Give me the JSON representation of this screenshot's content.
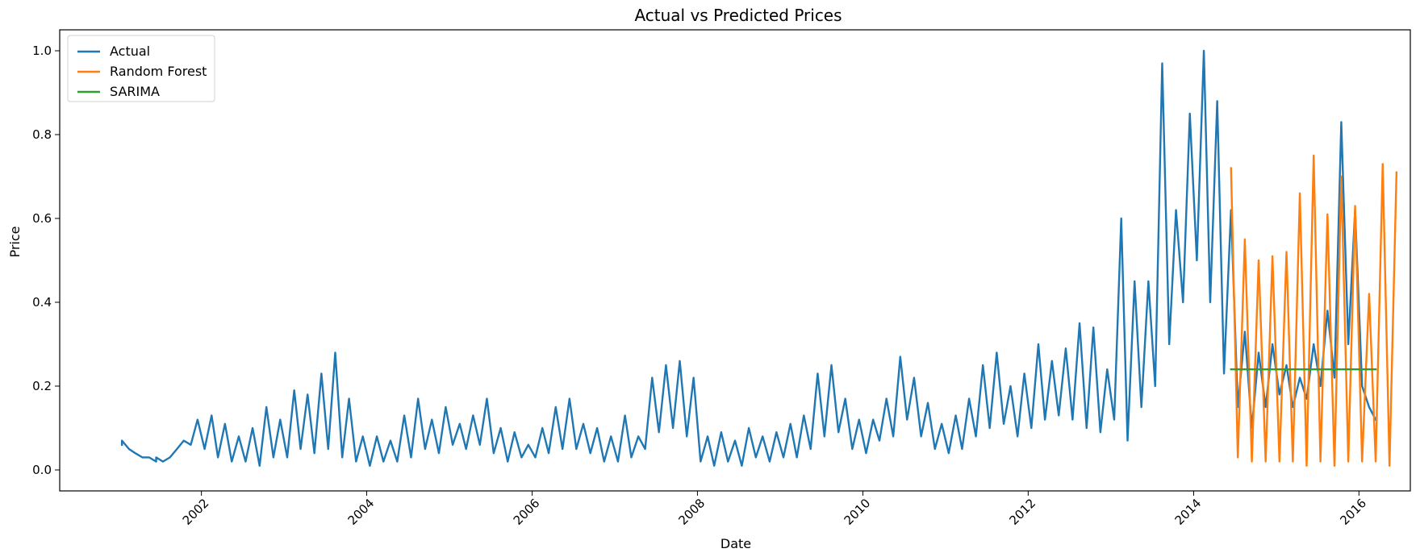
{
  "chart_data": {
    "type": "line",
    "title": "Actual vs Predicted Prices",
    "xlabel": "Date",
    "ylabel": "Price",
    "xlim": [
      "2000-04-15",
      "2016-08-15"
    ],
    "ylim": [
      -0.05,
      1.05
    ],
    "x_ticks": [
      "2002",
      "2004",
      "2006",
      "2008",
      "2010",
      "2012",
      "2014",
      "2016"
    ],
    "y_ticks": [
      "0.0",
      "0.2",
      "0.4",
      "0.6",
      "0.8",
      "1.0"
    ],
    "grid": false,
    "legend_position": "upper-left",
    "series": [
      {
        "name": "Actual",
        "color": "#1f77b4",
        "points": [
          [
            "2001-01",
            0.06
          ],
          [
            "2001-01",
            0.07
          ],
          [
            "2001-02",
            0.05
          ],
          [
            "2001-03",
            0.04
          ],
          [
            "2001-04",
            0.03
          ],
          [
            "2001-05",
            0.03
          ],
          [
            "2001-06",
            0.02
          ],
          [
            "2001-06",
            0.03
          ],
          [
            "2001-07",
            0.02
          ],
          [
            "2001-08",
            0.03
          ],
          [
            "2001-09",
            0.05
          ],
          [
            "2001-10",
            0.07
          ],
          [
            "2001-11",
            0.06
          ],
          [
            "2001-12",
            0.12
          ],
          [
            "2002-01",
            0.05
          ],
          [
            "2002-02",
            0.13
          ],
          [
            "2002-03",
            0.03
          ],
          [
            "2002-04",
            0.11
          ],
          [
            "2002-05",
            0.02
          ],
          [
            "2002-06",
            0.08
          ],
          [
            "2002-07",
            0.02
          ],
          [
            "2002-08",
            0.1
          ],
          [
            "2002-09",
            0.01
          ],
          [
            "2002-10",
            0.15
          ],
          [
            "2002-11",
            0.03
          ],
          [
            "2002-12",
            0.12
          ],
          [
            "2003-01",
            0.03
          ],
          [
            "2003-02",
            0.19
          ],
          [
            "2003-03",
            0.05
          ],
          [
            "2003-04",
            0.18
          ],
          [
            "2003-05",
            0.04
          ],
          [
            "2003-06",
            0.23
          ],
          [
            "2003-07",
            0.05
          ],
          [
            "2003-08",
            0.28
          ],
          [
            "2003-09",
            0.03
          ],
          [
            "2003-10",
            0.17
          ],
          [
            "2003-11",
            0.02
          ],
          [
            "2003-12",
            0.08
          ],
          [
            "2004-01",
            0.01
          ],
          [
            "2004-02",
            0.08
          ],
          [
            "2004-03",
            0.02
          ],
          [
            "2004-04",
            0.07
          ],
          [
            "2004-05",
            0.02
          ],
          [
            "2004-06",
            0.13
          ],
          [
            "2004-07",
            0.03
          ],
          [
            "2004-08",
            0.17
          ],
          [
            "2004-09",
            0.05
          ],
          [
            "2004-10",
            0.12
          ],
          [
            "2004-11",
            0.04
          ],
          [
            "2004-12",
            0.15
          ],
          [
            "2005-01",
            0.06
          ],
          [
            "2005-02",
            0.11
          ],
          [
            "2005-03",
            0.05
          ],
          [
            "2005-04",
            0.13
          ],
          [
            "2005-05",
            0.06
          ],
          [
            "2005-06",
            0.17
          ],
          [
            "2005-07",
            0.04
          ],
          [
            "2005-08",
            0.1
          ],
          [
            "2005-09",
            0.02
          ],
          [
            "2005-10",
            0.09
          ],
          [
            "2005-11",
            0.03
          ],
          [
            "2005-12",
            0.06
          ],
          [
            "2006-01",
            0.03
          ],
          [
            "2006-02",
            0.1
          ],
          [
            "2006-03",
            0.04
          ],
          [
            "2006-04",
            0.15
          ],
          [
            "2006-05",
            0.05
          ],
          [
            "2006-06",
            0.17
          ],
          [
            "2006-07",
            0.05
          ],
          [
            "2006-08",
            0.11
          ],
          [
            "2006-09",
            0.04
          ],
          [
            "2006-10",
            0.1
          ],
          [
            "2006-11",
            0.02
          ],
          [
            "2006-12",
            0.08
          ],
          [
            "2007-01",
            0.02
          ],
          [
            "2007-02",
            0.13
          ],
          [
            "2007-03",
            0.03
          ],
          [
            "2007-04",
            0.08
          ],
          [
            "2007-05",
            0.05
          ],
          [
            "2007-06",
            0.22
          ],
          [
            "2007-07",
            0.09
          ],
          [
            "2007-08",
            0.25
          ],
          [
            "2007-09",
            0.1
          ],
          [
            "2007-10",
            0.26
          ],
          [
            "2007-11",
            0.08
          ],
          [
            "2007-12",
            0.22
          ],
          [
            "2008-01",
            0.02
          ],
          [
            "2008-02",
            0.08
          ],
          [
            "2008-03",
            0.01
          ],
          [
            "2008-04",
            0.09
          ],
          [
            "2008-05",
            0.02
          ],
          [
            "2008-06",
            0.07
          ],
          [
            "2008-07",
            0.01
          ],
          [
            "2008-08",
            0.1
          ],
          [
            "2008-09",
            0.03
          ],
          [
            "2008-10",
            0.08
          ],
          [
            "2008-11",
            0.02
          ],
          [
            "2008-12",
            0.09
          ],
          [
            "2009-01",
            0.03
          ],
          [
            "2009-02",
            0.11
          ],
          [
            "2009-03",
            0.03
          ],
          [
            "2009-04",
            0.13
          ],
          [
            "2009-05",
            0.05
          ],
          [
            "2009-06",
            0.23
          ],
          [
            "2009-07",
            0.08
          ],
          [
            "2009-08",
            0.25
          ],
          [
            "2009-09",
            0.09
          ],
          [
            "2009-10",
            0.17
          ],
          [
            "2009-11",
            0.05
          ],
          [
            "2009-12",
            0.12
          ],
          [
            "2010-01",
            0.04
          ],
          [
            "2010-02",
            0.12
          ],
          [
            "2010-03",
            0.07
          ],
          [
            "2010-04",
            0.17
          ],
          [
            "2010-05",
            0.08
          ],
          [
            "2010-06",
            0.27
          ],
          [
            "2010-07",
            0.12
          ],
          [
            "2010-08",
            0.22
          ],
          [
            "2010-09",
            0.08
          ],
          [
            "2010-10",
            0.16
          ],
          [
            "2010-11",
            0.05
          ],
          [
            "2010-12",
            0.11
          ],
          [
            "2011-01",
            0.04
          ],
          [
            "2011-02",
            0.13
          ],
          [
            "2011-03",
            0.05
          ],
          [
            "2011-04",
            0.17
          ],
          [
            "2011-05",
            0.08
          ],
          [
            "2011-06",
            0.25
          ],
          [
            "2011-07",
            0.1
          ],
          [
            "2011-08",
            0.28
          ],
          [
            "2011-09",
            0.11
          ],
          [
            "2011-10",
            0.2
          ],
          [
            "2011-11",
            0.08
          ],
          [
            "2011-12",
            0.23
          ],
          [
            "2012-01",
            0.1
          ],
          [
            "2012-02",
            0.3
          ],
          [
            "2012-03",
            0.12
          ],
          [
            "2012-04",
            0.26
          ],
          [
            "2012-05",
            0.13
          ],
          [
            "2012-06",
            0.29
          ],
          [
            "2012-07",
            0.12
          ],
          [
            "2012-08",
            0.35
          ],
          [
            "2012-09",
            0.1
          ],
          [
            "2012-10",
            0.34
          ],
          [
            "2012-11",
            0.09
          ],
          [
            "2012-12",
            0.24
          ],
          [
            "2013-01",
            0.12
          ],
          [
            "2013-02",
            0.6
          ],
          [
            "2013-03",
            0.07
          ],
          [
            "2013-04",
            0.45
          ],
          [
            "2013-05",
            0.15
          ],
          [
            "2013-06",
            0.45
          ],
          [
            "2013-07",
            0.2
          ],
          [
            "2013-08",
            0.97
          ],
          [
            "2013-09",
            0.3
          ],
          [
            "2013-10",
            0.62
          ],
          [
            "2013-11",
            0.4
          ],
          [
            "2013-12",
            0.85
          ],
          [
            "2014-01",
            0.5
          ],
          [
            "2014-02",
            1.0
          ],
          [
            "2014-03",
            0.4
          ],
          [
            "2014-04",
            0.88
          ],
          [
            "2014-05",
            0.23
          ],
          [
            "2014-06",
            0.62
          ],
          [
            "2014-07",
            0.15
          ],
          [
            "2014-08",
            0.33
          ],
          [
            "2014-09",
            0.1
          ],
          [
            "2014-10",
            0.28
          ],
          [
            "2014-11",
            0.15
          ],
          [
            "2014-12",
            0.3
          ],
          [
            "2015-01",
            0.18
          ],
          [
            "2015-02",
            0.25
          ],
          [
            "2015-03",
            0.15
          ],
          [
            "2015-04",
            0.22
          ],
          [
            "2015-05",
            0.17
          ],
          [
            "2015-06",
            0.3
          ],
          [
            "2015-07",
            0.2
          ],
          [
            "2015-08",
            0.38
          ],
          [
            "2015-09",
            0.22
          ],
          [
            "2015-10",
            0.83
          ],
          [
            "2015-11",
            0.3
          ],
          [
            "2015-12",
            0.62
          ],
          [
            "2016-01",
            0.2
          ],
          [
            "2016-02",
            0.15
          ],
          [
            "2016-03",
            0.12
          ]
        ]
      },
      {
        "name": "Random Forest",
        "color": "#ff7f0e",
        "points": [
          [
            "2014-06",
            0.72
          ],
          [
            "2014-07",
            0.03
          ],
          [
            "2014-08",
            0.55
          ],
          [
            "2014-09",
            0.02
          ],
          [
            "2014-10",
            0.5
          ],
          [
            "2014-11",
            0.02
          ],
          [
            "2014-12",
            0.51
          ],
          [
            "2015-01",
            0.02
          ],
          [
            "2015-02",
            0.52
          ],
          [
            "2015-03",
            0.02
          ],
          [
            "2015-04",
            0.66
          ],
          [
            "2015-05",
            0.01
          ],
          [
            "2015-06",
            0.75
          ],
          [
            "2015-07",
            0.02
          ],
          [
            "2015-08",
            0.61
          ],
          [
            "2015-09",
            0.01
          ],
          [
            "2015-10",
            0.7
          ],
          [
            "2015-11",
            0.02
          ],
          [
            "2015-12",
            0.63
          ],
          [
            "2016-01",
            0.02
          ],
          [
            "2016-02",
            0.42
          ],
          [
            "2016-03",
            0.02
          ],
          [
            "2016-04",
            0.73
          ],
          [
            "2016-05",
            0.01
          ],
          [
            "2016-06",
            0.71
          ]
        ]
      },
      {
        "name": "SARIMA",
        "color": "#2ca02c",
        "points": [
          [
            "2014-06",
            0.24
          ],
          [
            "2016-03",
            0.24
          ]
        ]
      }
    ]
  }
}
